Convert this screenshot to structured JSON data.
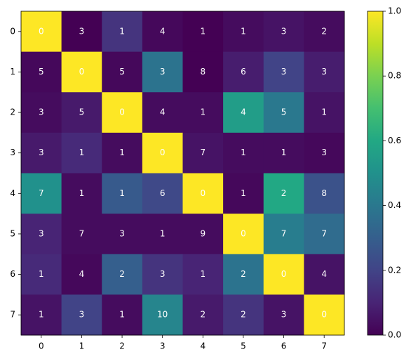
{
  "chart_data": {
    "type": "heatmap",
    "cmap": "viridis",
    "xticks": [
      0,
      1,
      2,
      3,
      4,
      5,
      6,
      7
    ],
    "yticks": [
      0,
      1,
      2,
      3,
      4,
      5,
      6,
      7
    ],
    "values": [
      [
        1.0,
        0.0,
        0.15,
        0.02,
        0.0,
        0.03,
        0.05,
        0.03
      ],
      [
        0.02,
        1.0,
        0.02,
        0.38,
        0.0,
        0.08,
        0.2,
        0.08
      ],
      [
        0.03,
        0.07,
        1.0,
        0.03,
        0.03,
        0.55,
        0.4,
        0.05
      ],
      [
        0.07,
        0.12,
        0.03,
        1.0,
        0.05,
        0.03,
        0.03,
        0.02
      ],
      [
        0.5,
        0.03,
        0.28,
        0.22,
        1.0,
        0.02,
        0.6,
        0.25
      ],
      [
        0.1,
        0.03,
        0.03,
        0.03,
        0.03,
        1.0,
        0.42,
        0.35
      ],
      [
        0.12,
        0.02,
        0.3,
        0.15,
        0.1,
        0.38,
        1.0,
        0.05
      ],
      [
        0.05,
        0.2,
        0.03,
        0.45,
        0.07,
        0.15,
        0.05,
        1.0
      ]
    ],
    "annotations": [
      [
        0,
        3,
        1,
        4,
        1,
        1,
        3,
        2
      ],
      [
        5,
        0,
        5,
        3,
        8,
        6,
        3,
        3
      ],
      [
        3,
        5,
        0,
        4,
        1,
        4,
        5,
        1
      ],
      [
        3,
        1,
        1,
        0,
        7,
        1,
        1,
        3
      ],
      [
        7,
        1,
        1,
        6,
        0,
        1,
        2,
        8
      ],
      [
        3,
        7,
        3,
        1,
        9,
        0,
        7,
        7
      ],
      [
        1,
        4,
        2,
        3,
        1,
        2,
        0,
        4
      ],
      [
        1,
        3,
        1,
        10,
        2,
        2,
        3,
        0
      ]
    ],
    "clim": [
      0,
      1
    ],
    "cticks": [
      {
        "value": 0,
        "label": "0.0"
      },
      {
        "value": 0.2,
        "label": "0.2"
      },
      {
        "value": 0.4,
        "label": "0.4"
      },
      {
        "value": 0.6,
        "label": "0.6"
      },
      {
        "value": 0.8,
        "label": "0.8"
      },
      {
        "value": 1,
        "label": "1.0"
      }
    ]
  }
}
